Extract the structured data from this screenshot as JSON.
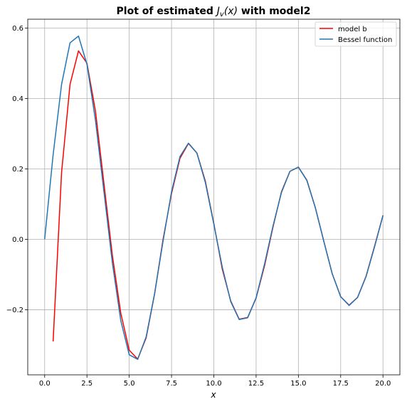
{
  "chart_data": {
    "type": "line",
    "title": {
      "prefix": "Plot of estimated ",
      "math": "J",
      "math_sub": "v",
      "math_arg": "(x)",
      "suffix": " with model2"
    },
    "xlabel": "x",
    "ylabel": "",
    "xlim": [
      -1.0,
      21.0
    ],
    "ylim": [
      -0.385,
      0.625
    ],
    "xticks": [
      0.0,
      2.5,
      5.0,
      7.5,
      10.0,
      12.5,
      15.0,
      17.5,
      20.0
    ],
    "xtick_labels": [
      "0.0",
      "2.5",
      "5.0",
      "7.5",
      "10.0",
      "12.5",
      "15.0",
      "17.5",
      "20.0"
    ],
    "yticks": [
      -0.2,
      0.0,
      0.2,
      0.4,
      0.6
    ],
    "ytick_labels": [
      "−0.2",
      "0.0",
      "0.2",
      "0.4",
      "0.6"
    ],
    "grid": true,
    "legend_position": "top-right",
    "series": [
      {
        "name": "model b",
        "color": "#ff0000",
        "x": [
          0.5,
          1.0,
          1.5,
          2.0,
          2.5,
          3.0,
          3.5,
          4.0,
          4.5,
          5.0,
          5.5,
          6.0,
          6.5,
          7.0,
          7.5,
          8.0,
          8.5,
          9.0,
          9.5,
          10.0,
          10.5,
          11.0,
          11.5,
          12.0,
          12.5,
          13.0,
          13.5,
          14.0,
          14.5,
          15.0,
          15.5,
          16.0,
          16.5,
          17.0,
          17.5,
          18.0,
          18.5,
          19.0,
          19.5,
          20.0
        ],
        "y": [
          -0.29,
          0.19,
          0.44,
          0.535,
          0.5,
          0.365,
          0.16,
          -0.045,
          -0.21,
          -0.315,
          -0.34,
          -0.28,
          -0.155,
          0.0,
          0.13,
          0.23,
          0.272,
          0.245,
          0.165,
          0.045,
          -0.085,
          -0.175,
          -0.227,
          -0.222,
          -0.167,
          -0.075,
          0.035,
          0.135,
          0.193,
          0.205,
          0.168,
          0.09,
          -0.005,
          -0.098,
          -0.163,
          -0.187,
          -0.165,
          -0.105,
          -0.02,
          0.068
        ]
      },
      {
        "name": "Bessel function",
        "color": "#1f77b4",
        "x": [
          0.0,
          0.5,
          1.0,
          1.5,
          2.0,
          2.5,
          3.0,
          3.5,
          4.0,
          4.5,
          5.0,
          5.5,
          6.0,
          6.5,
          7.0,
          7.5,
          8.0,
          8.5,
          9.0,
          9.5,
          10.0,
          10.5,
          11.0,
          11.5,
          12.0,
          12.5,
          13.0,
          13.5,
          14.0,
          14.5,
          15.0,
          15.5,
          16.0,
          16.5,
          17.0,
          17.5,
          18.0,
          18.5,
          19.0,
          19.5,
          20.0
        ],
        "y": [
          0.0,
          0.24,
          0.44,
          0.558,
          0.577,
          0.497,
          0.339,
          0.137,
          -0.066,
          -0.231,
          -0.328,
          -0.341,
          -0.277,
          -0.154,
          -0.005,
          0.135,
          0.235,
          0.273,
          0.245,
          0.161,
          0.043,
          -0.079,
          -0.177,
          -0.228,
          -0.223,
          -0.166,
          -0.07,
          0.038,
          0.133,
          0.193,
          0.205,
          0.167,
          0.09,
          -0.005,
          -0.098,
          -0.163,
          -0.188,
          -0.165,
          -0.106,
          -0.022,
          0.067
        ]
      }
    ]
  }
}
